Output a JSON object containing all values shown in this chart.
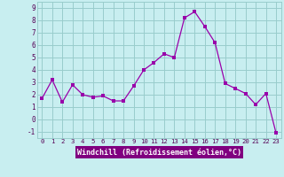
{
  "x": [
    0,
    1,
    2,
    3,
    4,
    5,
    6,
    7,
    8,
    9,
    10,
    11,
    12,
    13,
    14,
    15,
    16,
    17,
    18,
    19,
    20,
    21,
    22,
    23
  ],
  "y": [
    1.7,
    3.2,
    1.4,
    2.8,
    2.0,
    1.8,
    1.9,
    1.5,
    1.5,
    2.7,
    4.0,
    4.6,
    5.3,
    5.0,
    8.2,
    8.7,
    7.5,
    6.2,
    2.9,
    2.5,
    2.1,
    1.2,
    2.1,
    -1.1
  ],
  "xlabel": "Windchill (Refroidissement éolien,°C)",
  "xlim": [
    -0.5,
    23.5
  ],
  "ylim": [
    -1.5,
    9.5
  ],
  "yticks": [
    -1,
    0,
    1,
    2,
    3,
    4,
    5,
    6,
    7,
    8,
    9
  ],
  "xticks": [
    0,
    1,
    2,
    3,
    4,
    5,
    6,
    7,
    8,
    9,
    10,
    11,
    12,
    13,
    14,
    15,
    16,
    17,
    18,
    19,
    20,
    21,
    22,
    23
  ],
  "line_color": "#9900aa",
  "marker_color": "#9900aa",
  "bg_color": "#c8eef0",
  "grid_color": "#99cccc",
  "xlabel_bg": "#800080",
  "xlabel_text_color": "#ffffff"
}
